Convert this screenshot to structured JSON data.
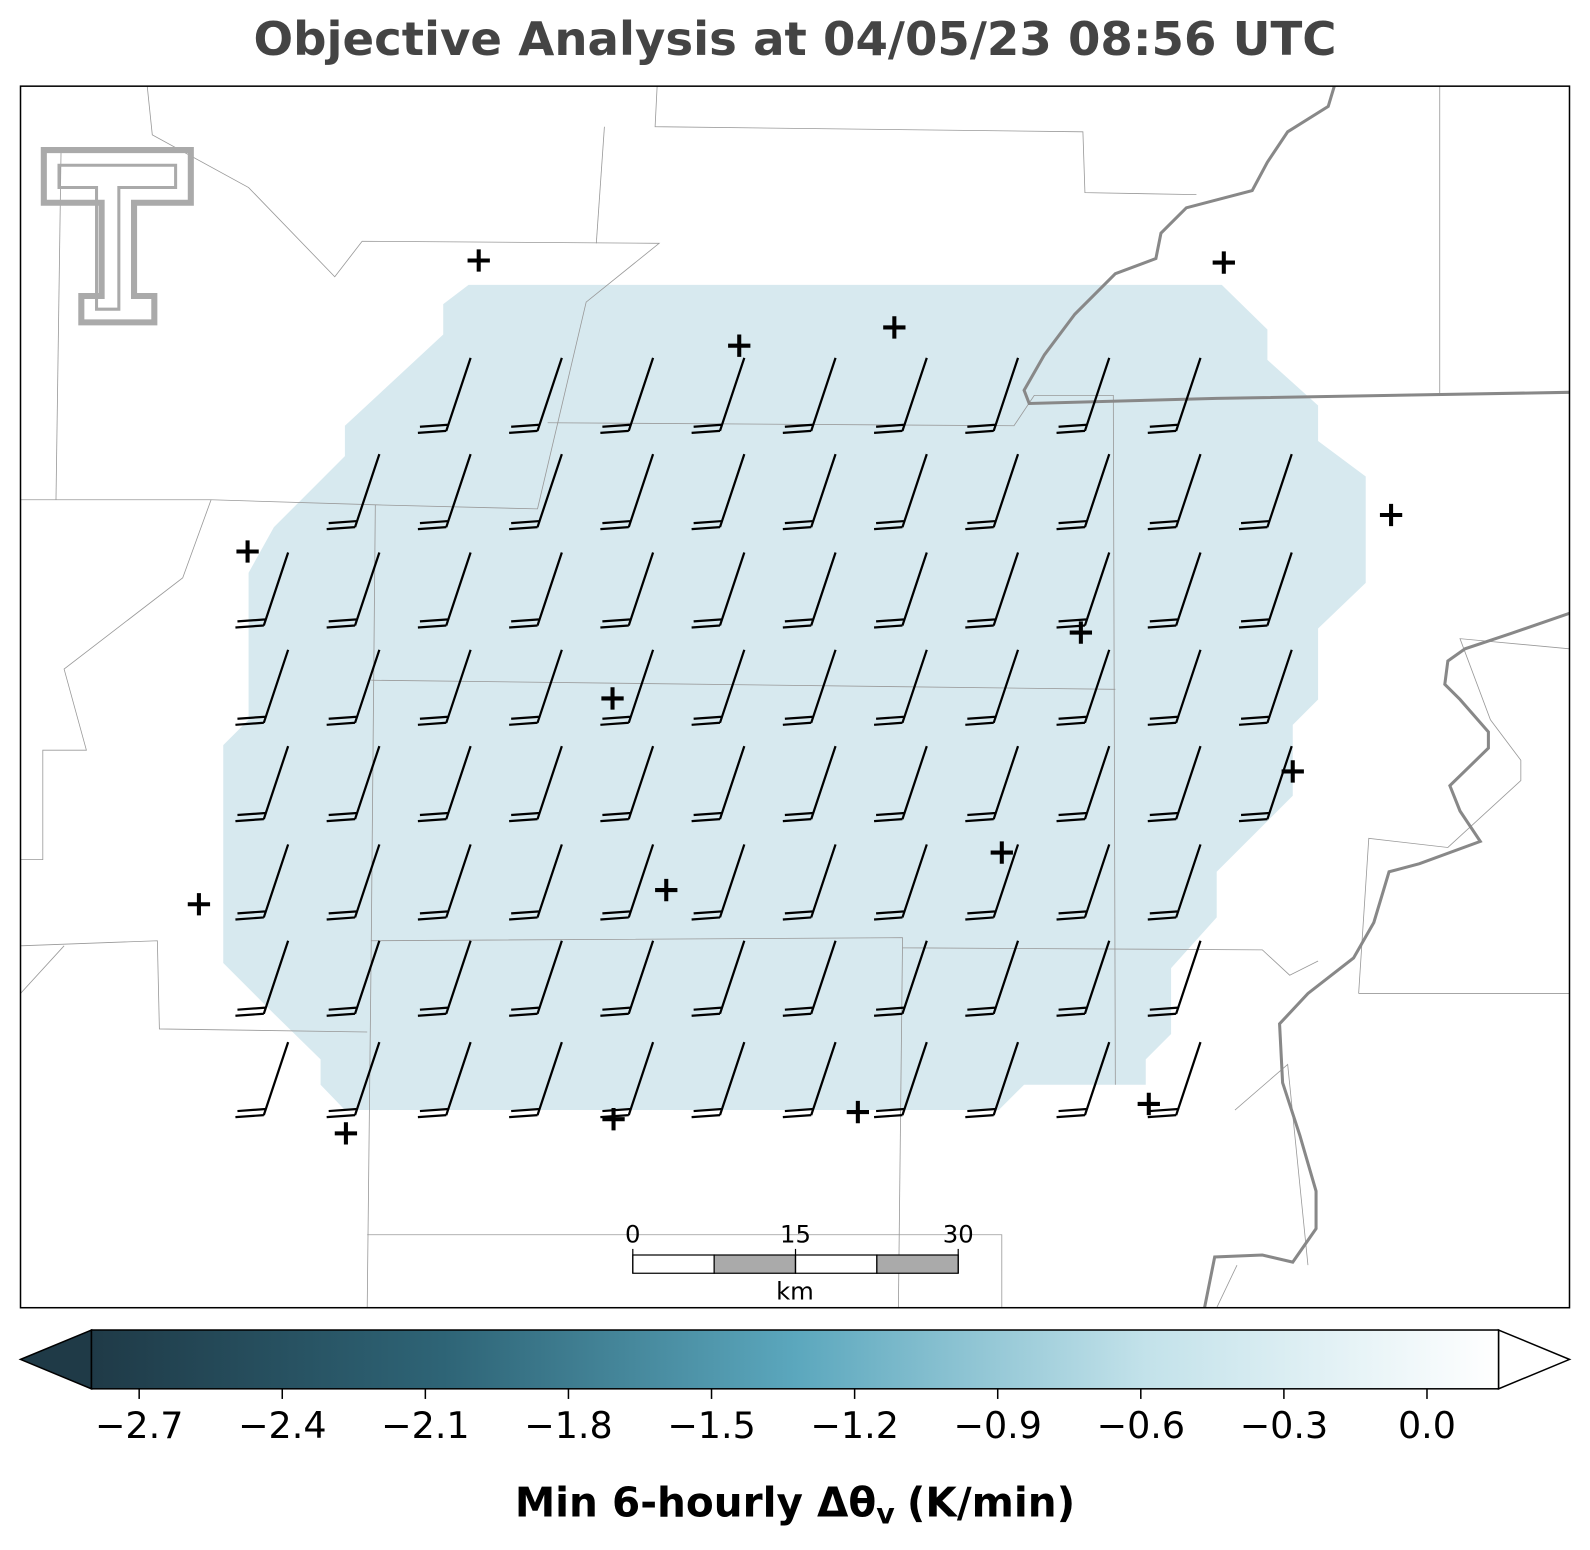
{
  "title": "Objective Analysis at 04/05/23 08:56 UTC",
  "colorbar": {
    "clim": [
      -2.8,
      0.15
    ],
    "colormap": [
      "#1f3a47",
      "#2e6476",
      "#5ba7bd",
      "#c3e2ea",
      "#ffffff"
    ],
    "ticks": [
      {
        "value": -2.7,
        "label": "−2.7"
      },
      {
        "value": -2.4,
        "label": "−2.4"
      },
      {
        "value": -2.1,
        "label": "−2.1"
      },
      {
        "value": -1.8,
        "label": "−1.8"
      },
      {
        "value": -1.5,
        "label": "−1.5"
      },
      {
        "value": -1.2,
        "label": "−1.2"
      },
      {
        "value": -0.9,
        "label": "−0.9"
      },
      {
        "value": -0.6,
        "label": "−0.6"
      },
      {
        "value": -0.3,
        "label": "−0.3"
      },
      {
        "value": 0.0,
        "label": "0.0"
      }
    ],
    "label": {
      "main": "Min 6-hourly Δθ",
      "sub": "v",
      "unit": "(K/min)"
    }
  },
  "scale_bar": {
    "range": [
      0,
      30
    ],
    "ticks": [
      0,
      15,
      30
    ],
    "unit": "km"
  }
}
